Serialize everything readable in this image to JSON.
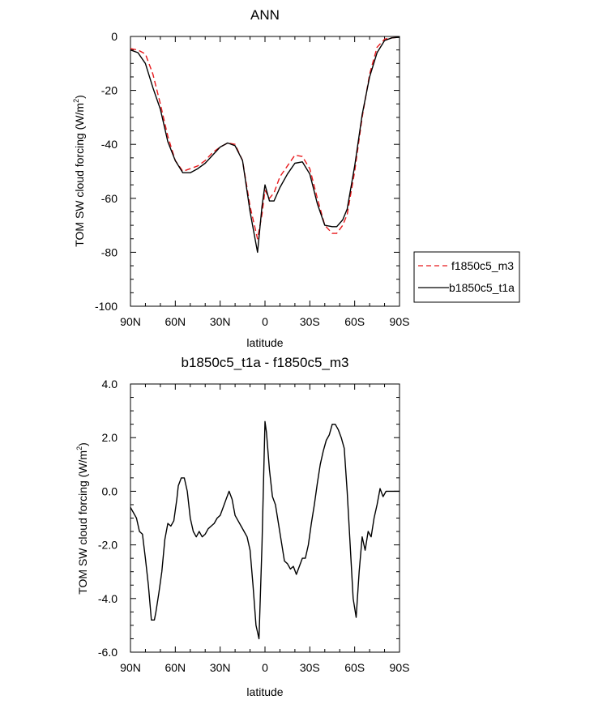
{
  "chart_data": [
    {
      "type": "line",
      "title": "ANN",
      "xlabel": "latitude",
      "ylabel": "TOM SW cloud forcing (W/m",
      "ylabel_sup": "2",
      "ylabel_end": ")",
      "xlim": [
        90,
        -90
      ],
      "ylim": [
        -100,
        0
      ],
      "x_ticks": [
        90,
        60,
        30,
        0,
        -30,
        -60,
        -90
      ],
      "x_tick_labels": [
        "90N",
        "60N",
        "30N",
        "0",
        "30S",
        "60S",
        "90S"
      ],
      "y_ticks": [
        0,
        -20,
        -40,
        -60,
        -80,
        -100
      ],
      "y_tick_labels": [
        "0",
        "-20",
        "-40",
        "-60",
        "-80",
        "-100"
      ],
      "grid": false,
      "legend_position": "right",
      "series": [
        {
          "name": "f1850c5_m3",
          "color": "#e8191c",
          "dash": "dashed",
          "x": [
            90,
            85,
            80,
            75,
            70,
            65,
            60,
            55,
            50,
            45,
            40,
            35,
            30,
            25,
            20,
            15,
            10,
            5,
            2,
            0,
            -3,
            -6,
            -10,
            -15,
            -20,
            -25,
            -30,
            -35,
            -40,
            -45,
            -48,
            -52,
            -55,
            -60,
            -65,
            -70,
            -75,
            -80,
            -85,
            -90
          ],
          "y": [
            -4.5,
            -5,
            -6.5,
            -14,
            -25,
            -37,
            -46,
            -50,
            -49,
            -48,
            -46,
            -43,
            -41,
            -39.5,
            -40,
            -46,
            -63,
            -75,
            -66,
            -57,
            -60,
            -58,
            -52,
            -48,
            -44,
            -44.5,
            -49,
            -60,
            -70,
            -73,
            -73,
            -70,
            -66,
            -50,
            -30,
            -14,
            -4,
            -1,
            -0.5,
            -0.3
          ]
        },
        {
          "name": "b1850c5_t1a",
          "color": "#000000",
          "dash": "solid",
          "x": [
            90,
            85,
            80,
            75,
            70,
            65,
            60,
            55,
            50,
            45,
            40,
            35,
            30,
            25,
            20,
            15,
            10,
            5,
            2,
            0,
            -3,
            -6,
            -10,
            -15,
            -20,
            -25,
            -30,
            -35,
            -40,
            -45,
            -48,
            -52,
            -55,
            -60,
            -65,
            -70,
            -75,
            -80,
            -85,
            -90
          ],
          "y": [
            -5,
            -6,
            -10,
            -19,
            -27,
            -39,
            -46,
            -50.5,
            -50.5,
            -49,
            -47,
            -44,
            -41,
            -39.5,
            -40.5,
            -46,
            -65,
            -80,
            -63,
            -55,
            -61,
            -61,
            -56,
            -51,
            -47,
            -46.5,
            -51,
            -62,
            -70,
            -70.5,
            -70.5,
            -68,
            -64,
            -48,
            -29,
            -15,
            -6,
            -1.5,
            -0.5,
            -0.3
          ]
        }
      ]
    },
    {
      "type": "line",
      "title": "b1850c5_t1a - f1850c5_m3",
      "xlabel": "latitude",
      "ylabel": "TOM SW cloud forcing (W/m",
      "ylabel_sup": "2",
      "ylabel_end": ")",
      "xlim": [
        90,
        -90
      ],
      "ylim": [
        -6,
        4
      ],
      "x_ticks": [
        90,
        60,
        30,
        0,
        -30,
        -60,
        -90
      ],
      "x_tick_labels": [
        "90N",
        "60N",
        "30N",
        "0",
        "30S",
        "60S",
        "90S"
      ],
      "y_ticks": [
        4,
        2,
        0,
        -2,
        -4,
        -6
      ],
      "y_tick_labels": [
        "4.0",
        "2.0",
        "0.0",
        "-2.0",
        "-4.0",
        "-6.0"
      ],
      "grid": false,
      "series": [
        {
          "color": "#000000",
          "dash": "solid",
          "x": [
            90,
            88,
            86,
            84,
            82,
            80,
            78,
            76,
            74,
            73,
            71,
            69,
            67,
            65,
            63,
            61,
            59,
            58,
            56,
            54,
            52,
            50,
            48,
            46,
            44,
            42,
            40,
            38,
            36,
            34,
            32,
            30,
            28,
            26,
            24,
            22,
            20,
            18,
            16,
            14,
            12,
            10,
            8,
            6,
            4,
            2,
            0,
            -1,
            -3,
            -5,
            -7,
            -9,
            -11,
            -13,
            -15,
            -17,
            -19,
            -21,
            -23,
            -25,
            -27,
            -29,
            -31,
            -33,
            -35,
            -37,
            -39,
            -41,
            -43,
            -45,
            -47,
            -49,
            -51,
            -53,
            -55,
            -57,
            -59,
            -61,
            -63,
            -65,
            -67,
            -69,
            -71,
            -73,
            -75,
            -77,
            -79,
            -81,
            -83,
            -85,
            -87,
            -90
          ],
          "y": [
            -0.6,
            -0.8,
            -1.0,
            -1.5,
            -1.6,
            -2.5,
            -3.5,
            -4.8,
            -4.8,
            -4.5,
            -3.8,
            -3.0,
            -1.8,
            -1.2,
            -1.3,
            -1.1,
            -0.3,
            0.2,
            0.5,
            0.5,
            0.0,
            -1.0,
            -1.5,
            -1.7,
            -1.5,
            -1.7,
            -1.6,
            -1.4,
            -1.3,
            -1.2,
            -1.0,
            -0.9,
            -0.6,
            -0.3,
            0.0,
            -0.3,
            -0.9,
            -1.1,
            -1.3,
            -1.5,
            -1.7,
            -2.2,
            -3.5,
            -5.0,
            -5.5,
            -2.0,
            2.6,
            2.2,
            0.8,
            -0.2,
            -0.5,
            -1.2,
            -1.9,
            -2.6,
            -2.7,
            -2.9,
            -2.8,
            -3.1,
            -2.8,
            -2.5,
            -2.5,
            -2.0,
            -1.2,
            -0.5,
            0.3,
            1.0,
            1.5,
            1.9,
            2.1,
            2.5,
            2.5,
            2.3,
            2.0,
            1.6,
            0.0,
            -2.0,
            -4.0,
            -4.7,
            -3.0,
            -1.7,
            -2.2,
            -1.5,
            -1.7,
            -1.0,
            -0.5,
            0.1,
            -0.2,
            0.0,
            0.0,
            0.0,
            0.0,
            0.0
          ]
        }
      ]
    }
  ]
}
